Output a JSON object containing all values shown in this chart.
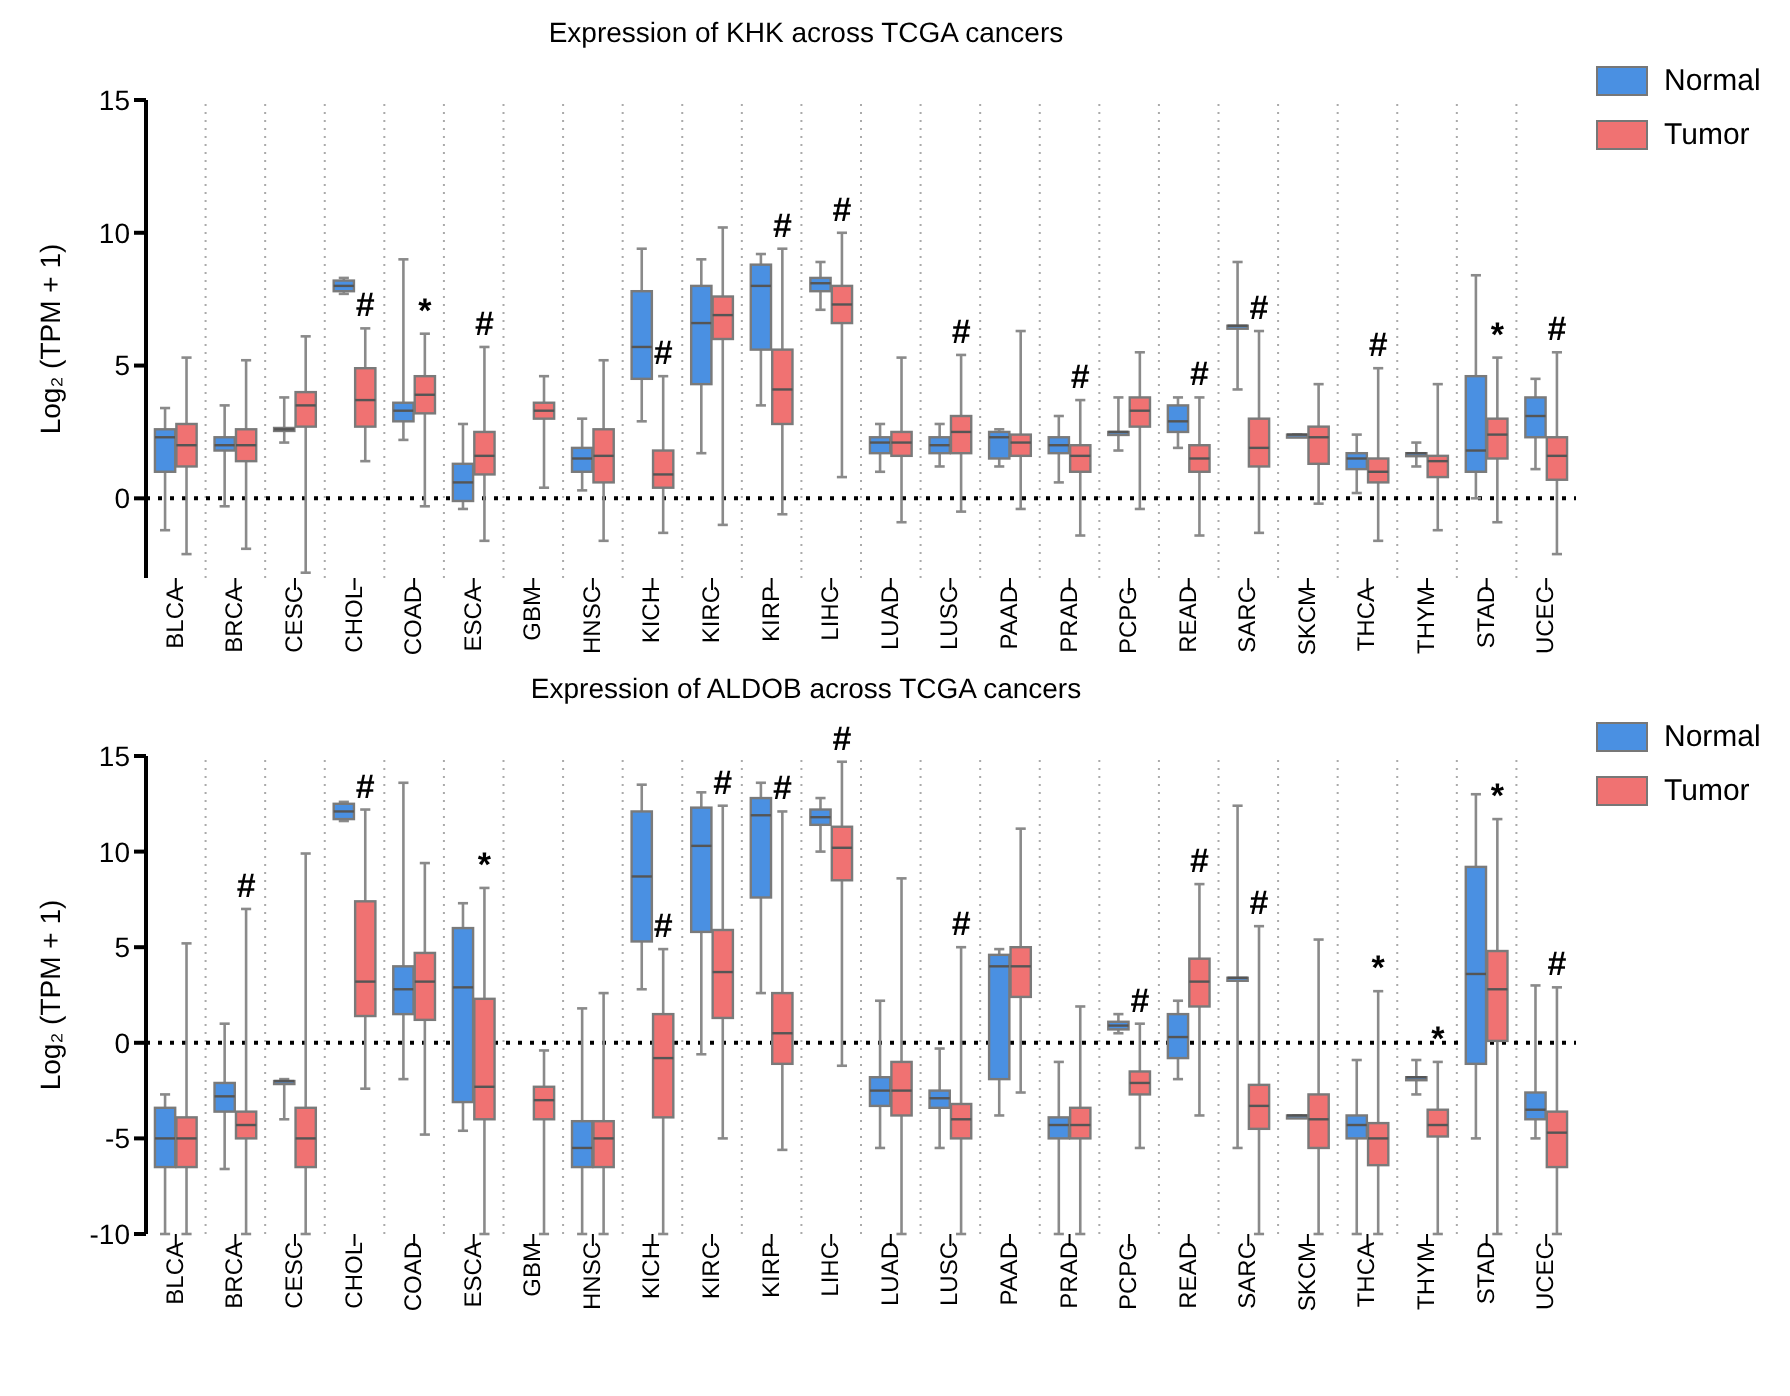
{
  "chart_data": [
    {
      "type": "box",
      "title": "Expression of KHK across TCGA cancers",
      "ylabel": "Log₂ (TPM + 1)",
      "categories": [
        "BLCA",
        "BRCA",
        "CESC",
        "CHOL",
        "COAD",
        "ESCA",
        "GBM",
        "HNSC",
        "KICH",
        "KIRC",
        "KIRP",
        "LIHC",
        "LUAD",
        "LUSC",
        "PAAD",
        "PRAD",
        "PCPG",
        "READ",
        "SARC",
        "SKCM",
        "THCA",
        "THYM",
        "STAD",
        "UCEC"
      ],
      "ylim": [
        -3,
        15
      ],
      "yticks": [
        0,
        5,
        10,
        15
      ],
      "grid": "x",
      "legend": "top right",
      "ref_lines": [
        {
          "axis": "y",
          "value": 0,
          "line_style": "dotted",
          "color": "#000000"
        }
      ],
      "series": [
        {
          "name": "Normal",
          "color": "#4a90e2",
          "boxes": [
            {
              "low": -1.2,
              "q1": 1.0,
              "median": 2.3,
              "q3": 2.6,
              "high": 3.4
            },
            {
              "low": -0.3,
              "q1": 1.8,
              "median": 2.0,
              "q3": 2.3,
              "high": 3.5
            },
            {
              "low": 2.1,
              "q1": 2.55,
              "median": 2.6,
              "q3": 2.65,
              "high": 3.8
            },
            {
              "low": 7.7,
              "q1": 7.8,
              "median": 8.0,
              "q3": 8.2,
              "high": 8.3
            },
            {
              "low": 2.2,
              "q1": 2.9,
              "median": 3.3,
              "q3": 3.6,
              "high": 9.0
            },
            {
              "low": -0.4,
              "q1": -0.1,
              "median": 0.6,
              "q3": 1.3,
              "high": 2.8
            },
            null,
            {
              "low": 0.3,
              "q1": 1.0,
              "median": 1.5,
              "q3": 1.9,
              "high": 3.0
            },
            {
              "low": 2.9,
              "q1": 4.5,
              "median": 5.7,
              "q3": 7.8,
              "high": 9.4
            },
            {
              "low": 1.7,
              "q1": 4.3,
              "median": 6.6,
              "q3": 8.0,
              "high": 9.0
            },
            {
              "low": 3.5,
              "q1": 5.6,
              "median": 8.0,
              "q3": 8.8,
              "high": 9.2
            },
            {
              "low": 7.1,
              "q1": 7.8,
              "median": 8.1,
              "q3": 8.3,
              "high": 8.9
            },
            {
              "low": 1.0,
              "q1": 1.7,
              "median": 2.1,
              "q3": 2.3,
              "high": 2.8
            },
            {
              "low": 1.2,
              "q1": 1.7,
              "median": 2.0,
              "q3": 2.3,
              "high": 2.8
            },
            {
              "low": 1.2,
              "q1": 1.5,
              "median": 2.3,
              "q3": 2.5,
              "high": 2.6
            },
            {
              "low": 0.6,
              "q1": 1.7,
              "median": 2.0,
              "q3": 2.3,
              "high": 3.1
            },
            {
              "low": 1.8,
              "q1": 2.5,
              "median": 2.5,
              "q3": 2.5,
              "high": 3.8
            },
            {
              "low": 1.9,
              "q1": 2.5,
              "median": 2.9,
              "q3": 3.5,
              "high": 3.8
            },
            {
              "low": 4.1,
              "q1": 6.5,
              "median": 6.5,
              "q3": 6.5,
              "high": 8.9
            },
            {
              "low": 2.4,
              "q1": 2.4,
              "median": 2.4,
              "q3": 2.4,
              "high": 2.4
            },
            {
              "low": 0.2,
              "q1": 1.1,
              "median": 1.5,
              "q3": 1.7,
              "high": 2.4
            },
            {
              "low": 1.2,
              "q1": 1.7,
              "median": 1.7,
              "q3": 1.7,
              "high": 2.1
            },
            {
              "low": 0.0,
              "q1": 1.0,
              "median": 1.8,
              "q3": 4.6,
              "high": 8.4
            },
            {
              "low": 1.1,
              "q1": 2.3,
              "median": 3.1,
              "q3": 3.8,
              "high": 4.5
            }
          ]
        },
        {
          "name": "Tumor",
          "color": "#f07272",
          "value_labels": [
            null,
            null,
            null,
            "#",
            "*",
            "#",
            null,
            null,
            "#",
            null,
            "#",
            "#",
            null,
            "#",
            null,
            "#",
            null,
            "#",
            "#",
            null,
            "#",
            null,
            "*",
            "#"
          ],
          "boxes": [
            {
              "low": -2.1,
              "q1": 1.2,
              "median": 2.0,
              "q3": 2.8,
              "high": 5.3
            },
            {
              "low": -1.9,
              "q1": 1.4,
              "median": 2.0,
              "q3": 2.6,
              "high": 5.2
            },
            {
              "low": -2.8,
              "q1": 2.7,
              "median": 3.5,
              "q3": 4.0,
              "high": 6.1
            },
            {
              "low": 1.4,
              "q1": 2.7,
              "median": 3.7,
              "q3": 4.9,
              "high": 6.4
            },
            {
              "low": -0.3,
              "q1": 3.2,
              "median": 3.9,
              "q3": 4.6,
              "high": 6.2
            },
            {
              "low": -1.6,
              "q1": 0.9,
              "median": 1.6,
              "q3": 2.5,
              "high": 5.7
            },
            {
              "low": 0.4,
              "q1": 3.0,
              "median": 3.3,
              "q3": 3.6,
              "high": 4.6
            },
            {
              "low": -1.6,
              "q1": 0.6,
              "median": 1.6,
              "q3": 2.6,
              "high": 5.2
            },
            {
              "low": -1.3,
              "q1": 0.4,
              "median": 0.9,
              "q3": 1.8,
              "high": 4.6
            },
            {
              "low": -1.0,
              "q1": 6.0,
              "median": 6.9,
              "q3": 7.6,
              "high": 10.2
            },
            {
              "low": -0.6,
              "q1": 2.8,
              "median": 4.1,
              "q3": 5.6,
              "high": 9.4
            },
            {
              "low": 0.8,
              "q1": 6.6,
              "median": 7.3,
              "q3": 8.0,
              "high": 10.0
            },
            {
              "low": -0.9,
              "q1": 1.6,
              "median": 2.1,
              "q3": 2.5,
              "high": 5.3
            },
            {
              "low": -0.5,
              "q1": 1.7,
              "median": 2.5,
              "q3": 3.1,
              "high": 5.4
            },
            {
              "low": -0.4,
              "q1": 1.6,
              "median": 2.1,
              "q3": 2.4,
              "high": 6.3
            },
            {
              "low": -1.4,
              "q1": 1.0,
              "median": 1.6,
              "q3": 2.0,
              "high": 3.7
            },
            {
              "low": -0.4,
              "q1": 2.7,
              "median": 3.3,
              "q3": 3.8,
              "high": 5.5
            },
            {
              "low": -1.4,
              "q1": 1.0,
              "median": 1.5,
              "q3": 2.0,
              "high": 3.8
            },
            {
              "low": -1.3,
              "q1": 1.2,
              "median": 1.9,
              "q3": 3.0,
              "high": 6.3
            },
            {
              "low": -0.2,
              "q1": 1.3,
              "median": 2.3,
              "q3": 2.7,
              "high": 4.3
            },
            {
              "low": -1.6,
              "q1": 0.6,
              "median": 1.0,
              "q3": 1.5,
              "high": 4.9
            },
            {
              "low": -1.2,
              "q1": 0.8,
              "median": 1.4,
              "q3": 1.6,
              "high": 4.3
            },
            {
              "low": -0.9,
              "q1": 1.5,
              "median": 2.4,
              "q3": 3.0,
              "high": 5.3
            },
            {
              "low": -2.1,
              "q1": 0.7,
              "median": 1.6,
              "q3": 2.3,
              "high": 5.5
            }
          ]
        }
      ]
    },
    {
      "type": "box",
      "title": "Expression of ALDOB across TCGA cancers",
      "ylabel": "Log₂ (TPM + 1)",
      "categories": [
        "BLCA",
        "BRCA",
        "CESC",
        "CHOL",
        "COAD",
        "ESCA",
        "GBM",
        "HNSC",
        "KICH",
        "KIRC",
        "KIRP",
        "LIHC",
        "LUAD",
        "LUSC",
        "PAAD",
        "PRAD",
        "PCPG",
        "READ",
        "SARC",
        "SKCM",
        "THCA",
        "THYM",
        "STAD",
        "UCEC"
      ],
      "ylim": [
        -10,
        15
      ],
      "yticks": [
        -10,
        -5,
        0,
        5,
        10,
        15
      ],
      "grid": "x",
      "legend": "top right",
      "ref_lines": [
        {
          "axis": "y",
          "value": 0,
          "line_style": "dotted",
          "color": "#000000"
        }
      ],
      "series": [
        {
          "name": "Normal",
          "color": "#4a90e2",
          "boxes": [
            {
              "low": -10,
              "q1": -6.5,
              "median": -5.0,
              "q3": -3.4,
              "high": -2.7
            },
            {
              "low": -6.6,
              "q1": -3.6,
              "median": -2.8,
              "q3": -2.1,
              "high": 1.0
            },
            {
              "low": -4.0,
              "q1": -2.0,
              "median": -2.0,
              "q3": -2.0,
              "high": -1.9
            },
            {
              "low": 11.6,
              "q1": 11.7,
              "median": 12.1,
              "q3": 12.5,
              "high": 12.6
            },
            {
              "low": -1.9,
              "q1": 1.5,
              "median": 2.8,
              "q3": 4.0,
              "high": 13.6
            },
            {
              "low": -4.6,
              "q1": -3.1,
              "median": 2.9,
              "q3": 6.0,
              "high": 7.3
            },
            null,
            {
              "low": -10,
              "q1": -6.5,
              "median": -5.5,
              "q3": -4.1,
              "high": 1.8
            },
            {
              "low": 2.8,
              "q1": 5.3,
              "median": 8.7,
              "q3": 12.1,
              "high": 13.5
            },
            {
              "low": -0.6,
              "q1": 5.8,
              "median": 10.3,
              "q3": 12.3,
              "high": 13.1
            },
            {
              "low": 2.6,
              "q1": 7.6,
              "median": 11.9,
              "q3": 12.8,
              "high": 13.6
            },
            {
              "low": 10.0,
              "q1": 11.4,
              "median": 11.8,
              "q3": 12.2,
              "high": 12.8
            },
            {
              "low": -5.5,
              "q1": -3.3,
              "median": -2.5,
              "q3": -1.8,
              "high": 2.2
            },
            {
              "low": -5.5,
              "q1": -3.4,
              "median": -2.9,
              "q3": -2.5,
              "high": -0.3
            },
            {
              "low": -3.8,
              "q1": -1.9,
              "median": 4.0,
              "q3": 4.6,
              "high": 4.9
            },
            {
              "low": -10,
              "q1": -5.0,
              "median": -4.3,
              "q3": -3.9,
              "high": -1.0
            },
            {
              "low": 0.5,
              "q1": 0.7,
              "median": 0.9,
              "q3": 1.1,
              "high": 1.5
            },
            {
              "low": -1.9,
              "q1": -0.8,
              "median": 0.3,
              "q3": 1.5,
              "high": 2.2
            },
            {
              "low": -5.5,
              "q1": 3.4,
              "median": 3.4,
              "q3": 3.4,
              "high": 12.4
            },
            {
              "low": -3.8,
              "q1": -3.8,
              "median": -3.8,
              "q3": -3.8,
              "high": -3.8
            },
            {
              "low": -10,
              "q1": -5.0,
              "median": -4.3,
              "q3": -3.8,
              "high": -0.9
            },
            {
              "low": -2.7,
              "q1": -1.8,
              "median": -1.8,
              "q3": -1.8,
              "high": -0.9
            },
            {
              "low": -5.0,
              "q1": -1.1,
              "median": 3.6,
              "q3": 9.2,
              "high": 13.0
            },
            {
              "low": -5.0,
              "q1": -4.0,
              "median": -3.5,
              "q3": -2.6,
              "high": 3.0
            }
          ]
        },
        {
          "name": "Tumor",
          "color": "#f07272",
          "value_labels": [
            null,
            "#",
            null,
            "#",
            null,
            "*",
            null,
            null,
            "#",
            "#",
            "#",
            "#",
            null,
            "#",
            null,
            null,
            "#",
            "#",
            "#",
            null,
            "*",
            "*",
            "*",
            "#"
          ],
          "boxes": [
            {
              "low": -10,
              "q1": -6.5,
              "median": -5.0,
              "q3": -3.9,
              "high": 5.2
            },
            {
              "low": -10,
              "q1": -5.0,
              "median": -4.3,
              "q3": -3.6,
              "high": 7.0
            },
            {
              "low": -10,
              "q1": -6.5,
              "median": -5.0,
              "q3": -3.4,
              "high": 9.9
            },
            {
              "low": -2.4,
              "q1": 1.4,
              "median": 3.2,
              "q3": 7.4,
              "high": 12.2
            },
            {
              "low": -4.8,
              "q1": 1.2,
              "median": 3.2,
              "q3": 4.7,
              "high": 9.4
            },
            {
              "low": -10,
              "q1": -4.0,
              "median": -2.3,
              "q3": 2.3,
              "high": 8.1
            },
            {
              "low": -10,
              "q1": -4.0,
              "median": -3.0,
              "q3": -2.3,
              "high": -0.4
            },
            {
              "low": -10,
              "q1": -6.5,
              "median": -5.0,
              "q3": -4.1,
              "high": 2.6
            },
            {
              "low": -10,
              "q1": -3.9,
              "median": -0.8,
              "q3": 1.5,
              "high": 4.9
            },
            {
              "low": -5.0,
              "q1": 1.3,
              "median": 3.7,
              "q3": 5.9,
              "high": 12.4
            },
            {
              "low": -5.6,
              "q1": -1.1,
              "median": 0.5,
              "q3": 2.6,
              "high": 12.1
            },
            {
              "low": -1.2,
              "q1": 8.5,
              "median": 10.2,
              "q3": 11.3,
              "high": 14.7
            },
            {
              "low": -10,
              "q1": -3.8,
              "median": -2.5,
              "q3": -1.0,
              "high": 8.6
            },
            {
              "low": -10,
              "q1": -5.0,
              "median": -4.0,
              "q3": -3.2,
              "high": 5.0
            },
            {
              "low": -2.6,
              "q1": 2.4,
              "median": 4.0,
              "q3": 5.0,
              "high": 11.2
            },
            {
              "low": -10,
              "q1": -5.0,
              "median": -4.3,
              "q3": -3.4,
              "high": 1.9
            },
            {
              "low": -5.5,
              "q1": -2.7,
              "median": -2.1,
              "q3": -1.5,
              "high": 1.0
            },
            {
              "low": -3.8,
              "q1": 1.9,
              "median": 3.2,
              "q3": 4.4,
              "high": 8.3
            },
            {
              "low": -10,
              "q1": -4.5,
              "median": -3.3,
              "q3": -2.2,
              "high": 6.1
            },
            {
              "low": -10,
              "q1": -5.5,
              "median": -4.0,
              "q3": -2.7,
              "high": 5.4
            },
            {
              "low": -10,
              "q1": -6.4,
              "median": -5.0,
              "q3": -4.2,
              "high": 2.7
            },
            {
              "low": -10,
              "q1": -4.9,
              "median": -4.3,
              "q3": -3.5,
              "high": -1.0
            },
            {
              "low": -10,
              "q1": 0.1,
              "median": 2.8,
              "q3": 4.8,
              "high": 11.7
            },
            {
              "low": -10,
              "q1": -6.5,
              "median": -4.7,
              "q3": -3.6,
              "high": 2.9
            }
          ]
        }
      ]
    }
  ]
}
